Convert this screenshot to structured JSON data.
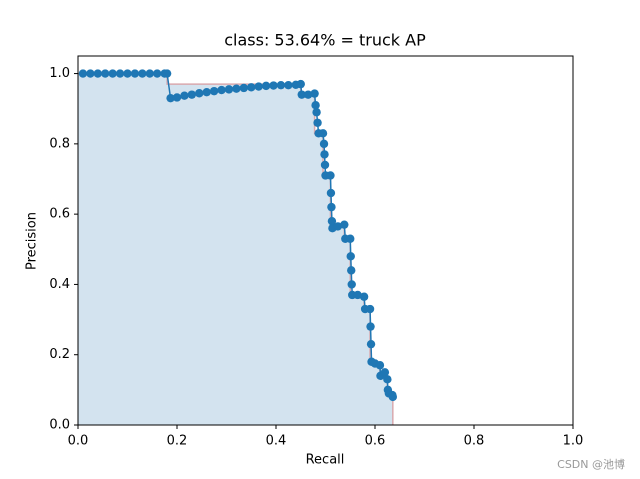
{
  "chart_data": {
    "type": "pr-curve",
    "title": "class: 53.64% = truck AP",
    "x_label": "Recall",
    "y_label": "Precision",
    "xlim": [
      0,
      1
    ],
    "ylim": [
      0,
      1.05
    ],
    "xticks": [
      {
        "value": 0,
        "label": "0.0"
      },
      {
        "value": 0.2,
        "label": "0.2"
      },
      {
        "value": 0.4,
        "label": "0.4"
      },
      {
        "value": 0.6,
        "label": "0.6"
      },
      {
        "value": 0.8,
        "label": "0.8"
      },
      {
        "value": 1,
        "label": "1.0"
      }
    ],
    "yticks": [
      {
        "value": 0,
        "label": "0.0"
      },
      {
        "value": 0.2,
        "label": "0.2"
      },
      {
        "value": 0.4,
        "label": "0.4"
      },
      {
        "value": 0.6,
        "label": "0.6"
      },
      {
        "value": 0.8,
        "label": "0.8"
      },
      {
        "value": 1,
        "label": "1.0"
      }
    ],
    "series": [
      {
        "kind": "area",
        "color": "#d3e3ef",
        "edge_color": "#d9a9ae",
        "x": [
          0,
          0.18,
          0.18,
          0.45,
          0.45,
          0.478,
          0.478,
          0.495,
          0.495,
          0.51,
          0.51,
          0.538,
          0.538,
          0.55,
          0.55,
          0.565,
          0.565,
          0.578,
          0.578,
          0.59,
          0.59,
          0.6,
          0.6,
          0.61,
          0.61,
          0.62,
          0.62,
          0.625,
          0.625,
          0.626,
          0.626,
          0.628,
          0.628,
          0.636,
          0.636
        ],
        "values": [
          1,
          1,
          0.97,
          0.97,
          0.943,
          0.943,
          0.83,
          0.83,
          0.71,
          0.71,
          0.57,
          0.57,
          0.53,
          0.53,
          0.37,
          0.37,
          0.365,
          0.365,
          0.33,
          0.33,
          0.175,
          0.175,
          0.17,
          0.17,
          0.15,
          0.15,
          0.13,
          0.13,
          0.1,
          0.1,
          0.09,
          0.09,
          0.085,
          0.085,
          0
        ]
      },
      {
        "kind": "line",
        "color": "#1f77b4",
        "x": [
          0.01,
          0.025,
          0.04,
          0.055,
          0.07,
          0.085,
          0.1,
          0.115,
          0.13,
          0.145,
          0.16,
          0.175,
          0.18,
          0.187,
          0.2,
          0.215,
          0.23,
          0.245,
          0.26,
          0.275,
          0.29,
          0.305,
          0.32,
          0.335,
          0.35,
          0.365,
          0.38,
          0.395,
          0.41,
          0.425,
          0.44,
          0.45,
          0.452,
          0.465,
          0.478,
          0.48,
          0.482,
          0.484,
          0.486,
          0.495,
          0.497,
          0.498,
          0.499,
          0.5,
          0.51,
          0.511,
          0.512,
          0.513,
          0.514,
          0.525,
          0.538,
          0.54,
          0.55,
          0.551,
          0.552,
          0.553,
          0.554,
          0.565,
          0.578,
          0.58,
          0.59,
          0.591,
          0.592,
          0.593,
          0.6,
          0.61,
          0.611,
          0.62,
          0.625,
          0.626,
          0.628,
          0.635,
          0.636
        ],
        "values": [
          1,
          1,
          1,
          1,
          1,
          1,
          1,
          1,
          1,
          1,
          1,
          1,
          1,
          0.93,
          0.932,
          0.937,
          0.94,
          0.944,
          0.947,
          0.95,
          0.953,
          0.955,
          0.957,
          0.959,
          0.961,
          0.963,
          0.965,
          0.966,
          0.967,
          0.967,
          0.968,
          0.97,
          0.94,
          0.94,
          0.943,
          0.91,
          0.89,
          0.86,
          0.83,
          0.83,
          0.8,
          0.77,
          0.74,
          0.71,
          0.71,
          0.66,
          0.62,
          0.58,
          0.56,
          0.565,
          0.57,
          0.53,
          0.53,
          0.48,
          0.44,
          0.4,
          0.37,
          0.37,
          0.365,
          0.33,
          0.33,
          0.28,
          0.23,
          0.18,
          0.175,
          0.17,
          0.14,
          0.15,
          0.13,
          0.1,
          0.09,
          0.085,
          0.08
        ]
      }
    ],
    "watermark": "CSDN @池博"
  }
}
